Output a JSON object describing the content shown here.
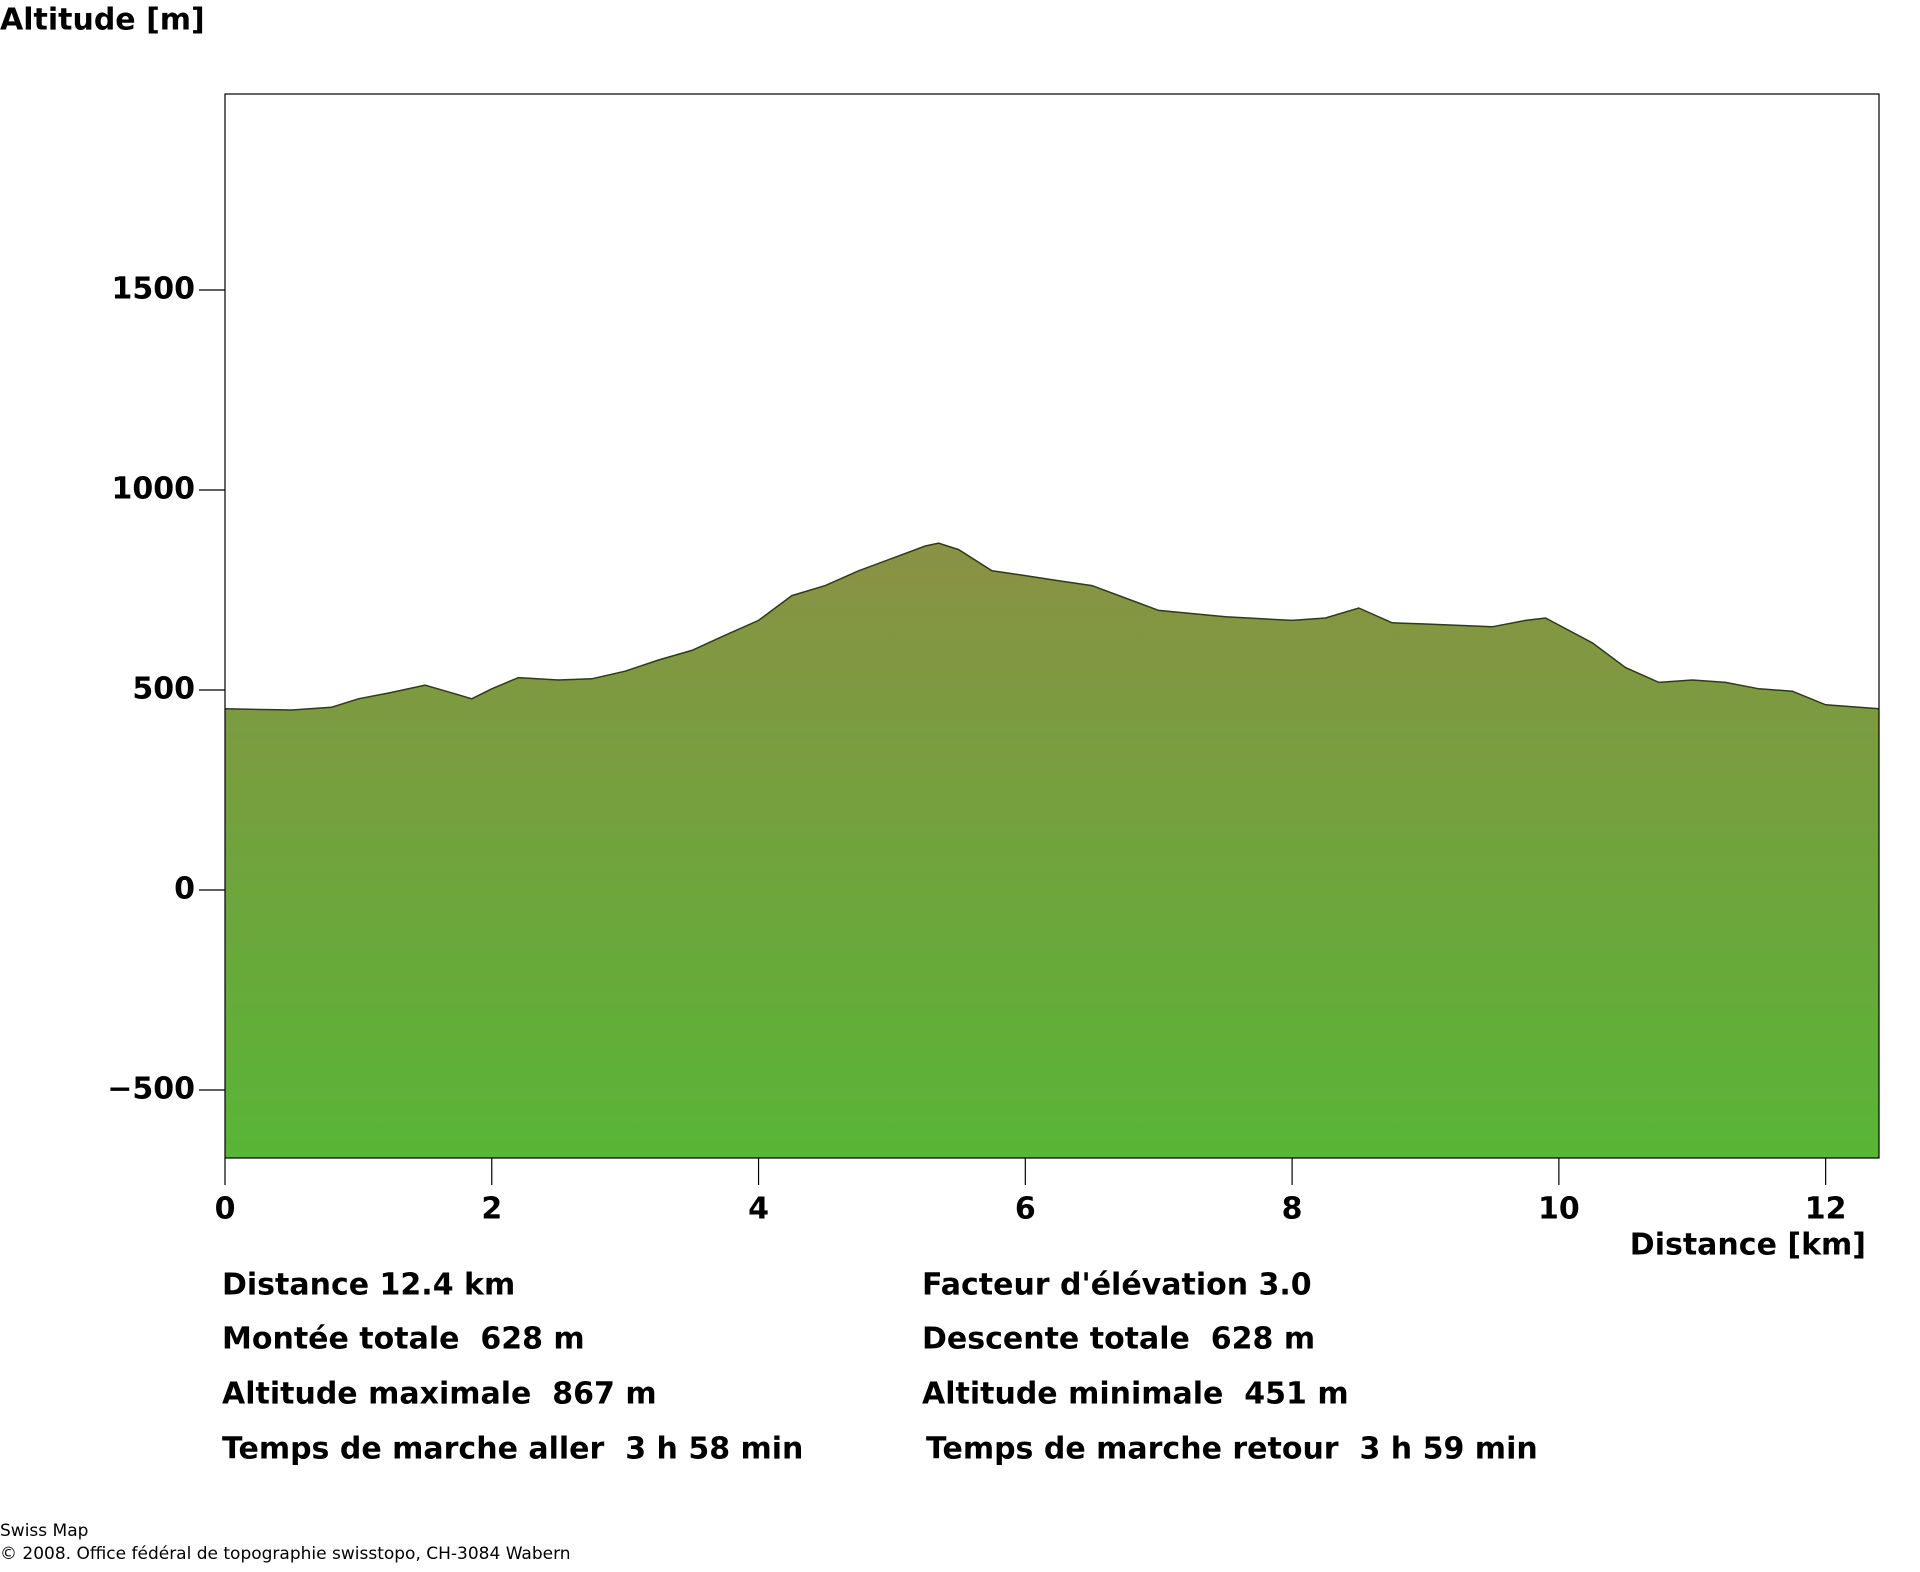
{
  "chart_data": {
    "type": "area",
    "ylabel": "Altitude [m]",
    "xlabel": "Distance [km]",
    "x": [
      0,
      0.5,
      0.8,
      1.0,
      1.25,
      1.5,
      1.75,
      1.85,
      2.0,
      2.2,
      2.5,
      2.75,
      3.0,
      3.25,
      3.5,
      3.75,
      4.0,
      4.25,
      4.5,
      4.75,
      5.0,
      5.25,
      5.35,
      5.5,
      5.75,
      6.0,
      6.25,
      6.5,
      6.75,
      7.0,
      7.5,
      8.0,
      8.25,
      8.5,
      8.75,
      9.0,
      9.5,
      9.75,
      9.9,
      10.25,
      10.5,
      10.75,
      11.0,
      11.25,
      11.5,
      11.75,
      12.0,
      12.4
    ],
    "values": [
      453,
      450,
      457,
      478,
      494,
      512,
      488,
      478,
      503,
      531,
      525,
      528,
      547,
      575,
      599,
      637,
      674,
      736,
      761,
      798,
      829,
      860,
      867,
      851,
      798,
      786,
      773,
      761,
      730,
      699,
      683,
      674,
      680,
      705,
      668,
      665,
      658,
      674,
      680,
      618,
      556,
      519,
      525,
      519,
      503,
      497,
      463,
      453
    ],
    "color_top": "#8a9144",
    "color_bottom": "#58b536",
    "line_color": "#2f3a1c",
    "xlim": [
      0,
      12.4
    ],
    "xticks": [
      0,
      2,
      4,
      6,
      8,
      10,
      12
    ],
    "ylim": [
      -670,
      1990
    ],
    "yticks": [
      {
        "value": -500,
        "label": "−500"
      },
      0,
      500,
      1000,
      1500
    ]
  },
  "stats": {
    "left": [
      "Distance 12.4 km",
      "Montée totale  628 m",
      "Altitude maximale  867 m",
      "Temps de marche aller  3 h 58 min"
    ],
    "right": [
      "Facteur d'élévation 3.0",
      "Descente totale  628 m",
      "Altitude minimale  451 m",
      "Temps de marche retour  3 h 59 min"
    ]
  },
  "footer": [
    "Swiss Map",
    "© 2008. Office fédéral de topographie swisstopo, CH-3084 Wabern"
  ]
}
